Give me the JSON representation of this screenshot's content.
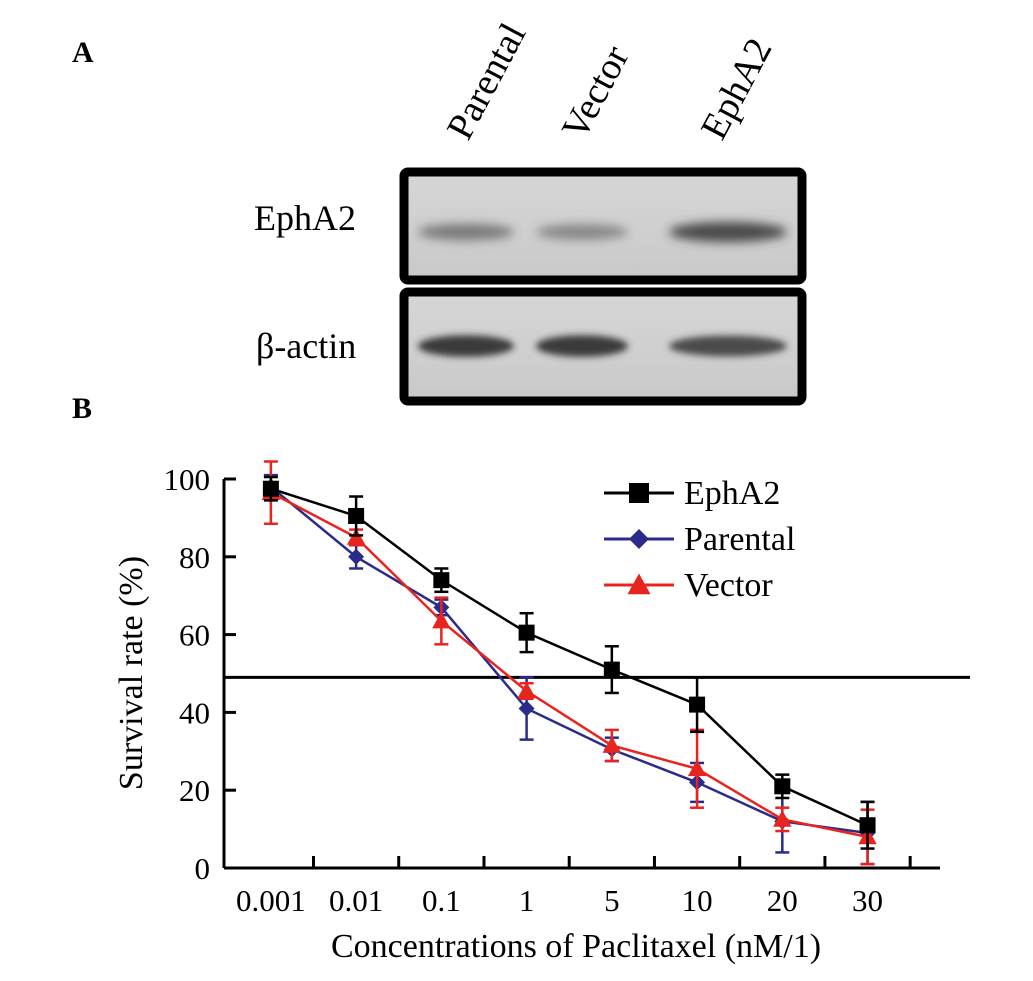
{
  "panel_a": {
    "label": "A",
    "lanes": [
      "Parental",
      "Vector",
      "EphA2"
    ],
    "rows": [
      {
        "label": "EphA2",
        "band_intensity": [
          0.55,
          0.45,
          0.85
        ]
      },
      {
        "label": "β-actin",
        "band_intensity": [
          0.95,
          0.95,
          0.85
        ]
      }
    ]
  },
  "panel_b": {
    "label": "B"
  },
  "chart_data": {
    "type": "line",
    "title": "",
    "xlabel": "Concentrations of Paclitaxel (nM/1)",
    "ylabel": "Survival rate (%)",
    "categories": [
      "0.001",
      "0.01",
      "0.1",
      "1",
      "5",
      "10",
      "20",
      "30"
    ],
    "ylim": [
      0,
      100
    ],
    "yticks": [
      0,
      20,
      40,
      60,
      80,
      100
    ],
    "reference_line": 49,
    "legend_position": "top-right",
    "grid": false,
    "series": [
      {
        "name": "EphA2",
        "color": "#000000",
        "marker": "square",
        "values": [
          97.5,
          90.5,
          74,
          60.5,
          51,
          42,
          21,
          11
        ],
        "errors": [
          3,
          5,
          3,
          5,
          6,
          7,
          3,
          6
        ]
      },
      {
        "name": "Parental",
        "color": "#2b2b8c",
        "marker": "diamond",
        "values": [
          98,
          80,
          67,
          41,
          30.5,
          22,
          12,
          9
        ],
        "errors": [
          3,
          3,
          2,
          8,
          3,
          5,
          8,
          8
        ]
      },
      {
        "name": "Vector",
        "color": "#e8241e",
        "marker": "triangle",
        "values": [
          96.5,
          85,
          63.5,
          45.5,
          31.5,
          25.5,
          12.5,
          8
        ],
        "errors": [
          8,
          2,
          6,
          2,
          4,
          10,
          3,
          7
        ]
      }
    ]
  }
}
